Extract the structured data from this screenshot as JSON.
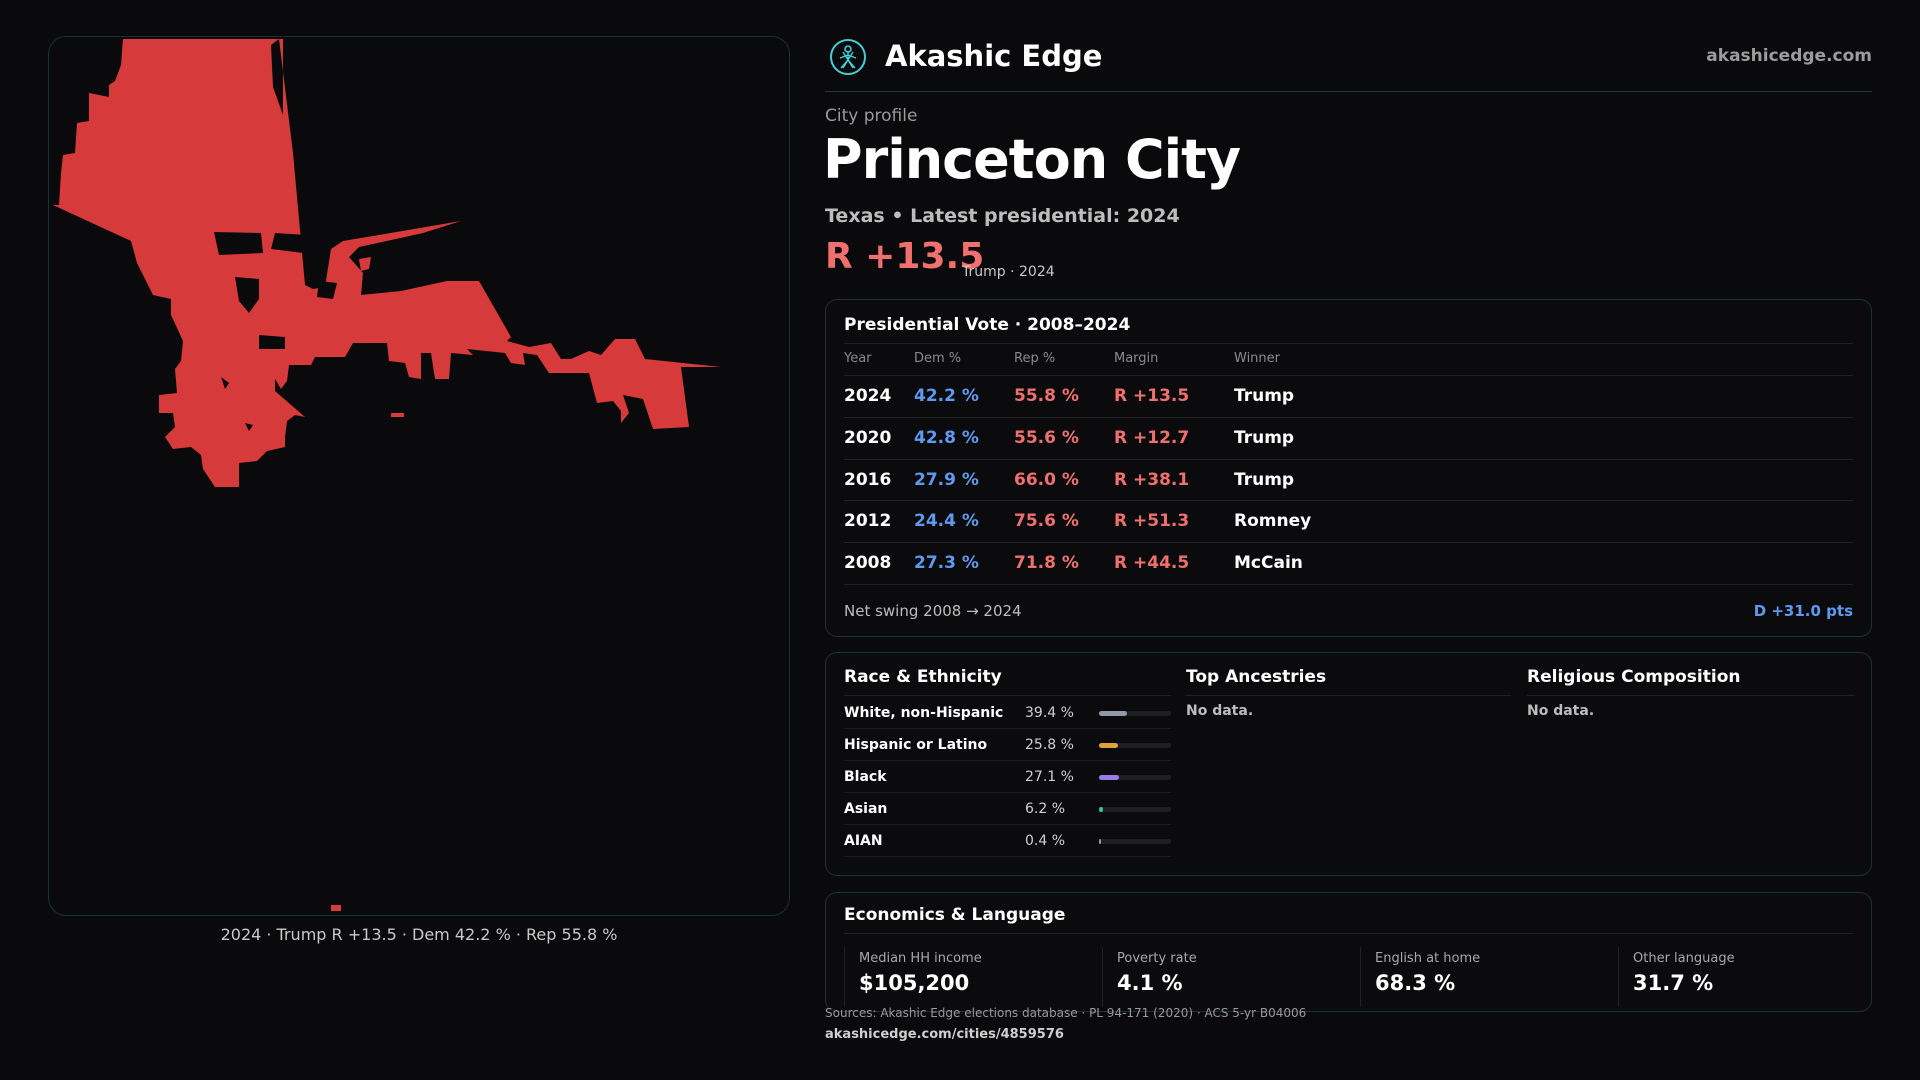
{
  "header": {
    "brand": "Akashic Edge",
    "site": "akashicedge.com"
  },
  "profile": {
    "eyebrow": "City profile",
    "city": "Princeton City",
    "subline": "Texas • Latest presidential: 2024",
    "headline_margin": "R +13.5",
    "headline_sub": "Trump · 2024"
  },
  "map": {
    "caption": "2024 · Trump R +13.5 · Dem 42.2 % · Rep 55.8 %",
    "fill_color": "#d63a3a"
  },
  "presidential": {
    "title": "Presidential Vote · 2008–2024",
    "columns": [
      "Year",
      "Dem %",
      "Rep %",
      "Margin",
      "Winner"
    ],
    "rows": [
      {
        "year": "2024",
        "dem": "42.2 %",
        "rep": "55.8 %",
        "margin": "R +13.5",
        "winner": "Trump"
      },
      {
        "year": "2020",
        "dem": "42.8 %",
        "rep": "55.6 %",
        "margin": "R +12.7",
        "winner": "Trump"
      },
      {
        "year": "2016",
        "dem": "27.9 %",
        "rep": "66.0 %",
        "margin": "R +38.1",
        "winner": "Trump"
      },
      {
        "year": "2012",
        "dem": "24.4 %",
        "rep": "75.6 %",
        "margin": "R +51.3",
        "winner": "Romney"
      },
      {
        "year": "2008",
        "dem": "27.3 %",
        "rep": "71.8 %",
        "margin": "R +44.5",
        "winner": "McCain"
      }
    ],
    "net_swing_label": "Net swing 2008 → 2024",
    "net_swing_value": "D +31.0 pts"
  },
  "race": {
    "title": "Race & Ethnicity",
    "rows": [
      {
        "label": "White, non-Hispanic",
        "pct": "39.4 %",
        "value": 39.4,
        "color": "#8e9aa8"
      },
      {
        "label": "Hispanic or Latino",
        "pct": "25.8 %",
        "value": 25.8,
        "color": "#e0a23a"
      },
      {
        "label": "Black",
        "pct": "27.1 %",
        "value": 27.1,
        "color": "#9a7be8"
      },
      {
        "label": "Asian",
        "pct": "6.2 %",
        "value": 6.2,
        "color": "#3bbfa0"
      },
      {
        "label": "AIAN",
        "pct": "0.4 %",
        "value": 0.4,
        "color": "#8e9aa8"
      }
    ]
  },
  "ancestries": {
    "title": "Top Ancestries",
    "empty": "No data."
  },
  "religion": {
    "title": "Religious Composition",
    "empty": "No data."
  },
  "economics": {
    "title": "Economics & Language",
    "stats": [
      {
        "label": "Median HH income",
        "value": "$105,200"
      },
      {
        "label": "Poverty rate",
        "value": "4.1 %"
      },
      {
        "label": "English at home",
        "value": "68.3 %"
      },
      {
        "label": "Other language",
        "value": "31.7 %"
      }
    ]
  },
  "footer": {
    "sources": "Sources: Akashic Edge elections database · PL 94-171 (2020) · ACS 5-yr B04006",
    "url": "akashicedge.com/cities/4859576"
  }
}
